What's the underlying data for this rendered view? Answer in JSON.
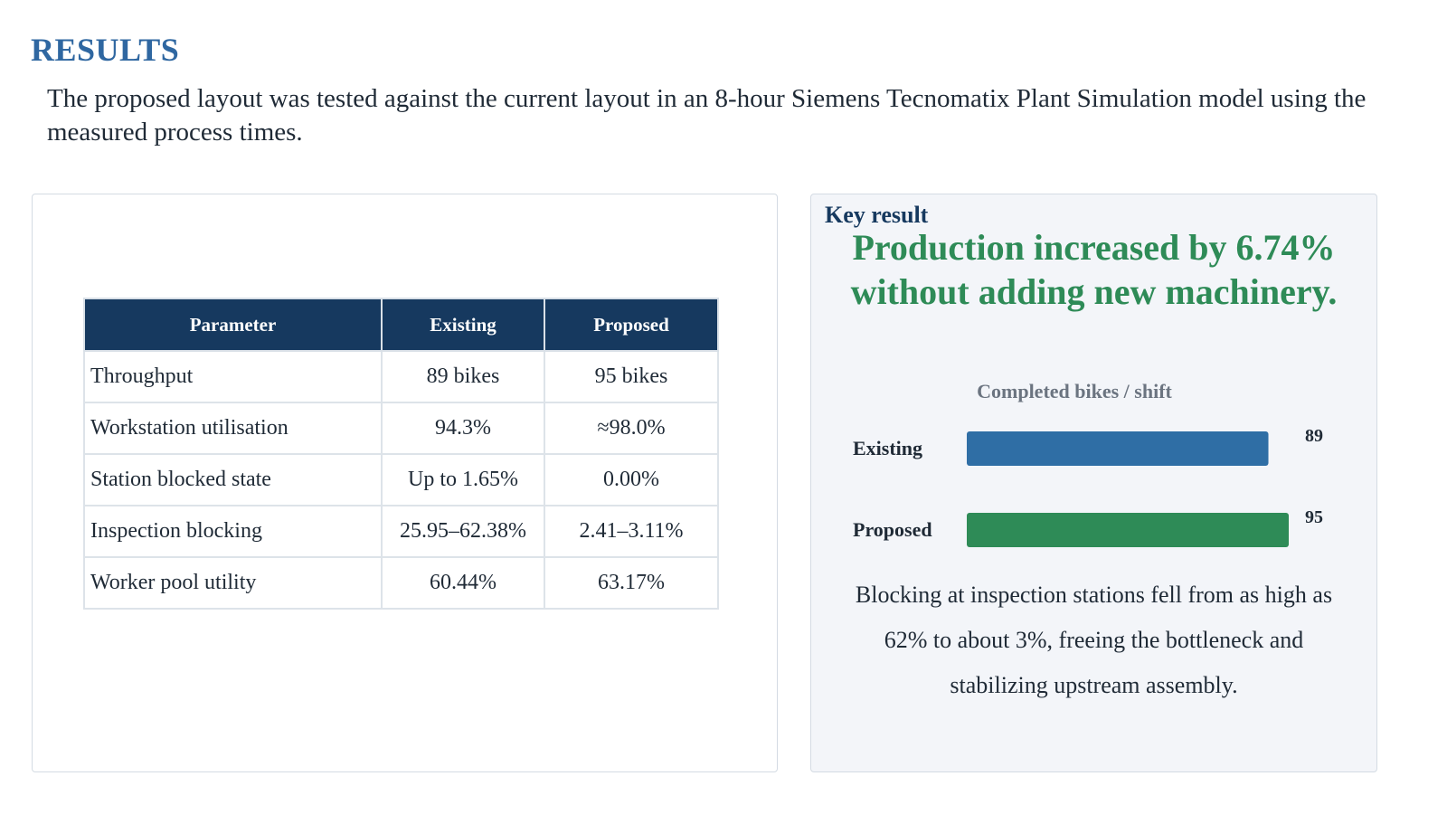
{
  "section": {
    "title": "RESULTS"
  },
  "intro": "The proposed layout was tested against the current layout in an 8-hour Siemens Tecnomatix Plant Simulation model using the measured process times.",
  "table": {
    "headers": [
      "Parameter",
      "Existing",
      "Proposed"
    ],
    "rows": [
      [
        "Throughput",
        "89 bikes",
        "95 bikes"
      ],
      [
        "Workstation utilisation",
        "94.3%",
        "≈98.0%"
      ],
      [
        "Station blocked state",
        "Up to 1.65%",
        "0.00%"
      ],
      [
        "Inspection blocking",
        "25.95–62.38%",
        "2.41–3.11%"
      ],
      [
        "Worker pool utility",
        "60.44%",
        "63.17%"
      ]
    ],
    "colors": {
      "header_bg": "#16395f",
      "header_text": "#ffffff",
      "border": "#dde3e9"
    }
  },
  "key_result": {
    "label": "Key result",
    "headline": "Production increased by 6.74% without adding new machinery.",
    "headline_color": "#2e8b57",
    "note": "Blocking at inspection stations fell from as high as 62% to about 3%, freeing the bottleneck and stabilizing upstream assembly."
  },
  "chart_data": {
    "type": "bar",
    "orientation": "horizontal",
    "title": "Completed bikes / shift",
    "categories": [
      "Existing",
      "Proposed"
    ],
    "values": [
      89,
      95
    ],
    "colors": [
      "#2f6ea5",
      "#2e8b57"
    ],
    "data_labels": [
      "89",
      "95"
    ]
  }
}
